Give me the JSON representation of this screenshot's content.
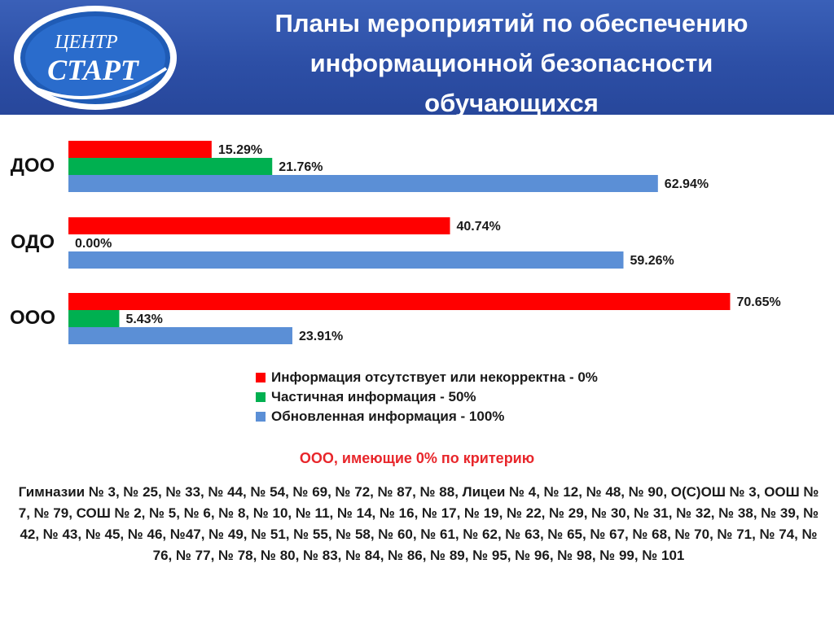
{
  "header": {
    "title": "Планы мероприятий по обеспечению\nинформационной безопасности\nобучающихся",
    "logo": {
      "line1": "ЦЕНТР",
      "line2": "СТАРТ"
    }
  },
  "chart_data": {
    "type": "bar",
    "orientation": "horizontal",
    "categories": [
      "ДОО",
      "ОДО",
      "ООО"
    ],
    "series": [
      {
        "name": "Информация отсутствует или некорректна - 0%",
        "color": "#ff0000",
        "values": [
          15.29,
          40.74,
          70.65
        ],
        "labels": [
          "15.29%",
          "40.74%",
          "70.65%"
        ]
      },
      {
        "name": "Частичная информация - 50%",
        "color": "#00b050",
        "values": [
          21.76,
          0.0,
          5.43
        ],
        "labels": [
          "21.76%",
          "0.00%",
          "5.43%"
        ]
      },
      {
        "name": "Обновленная информация - 100%",
        "color": "#5b8fd6",
        "values": [
          62.94,
          59.26,
          23.91
        ],
        "labels": [
          "62.94%",
          "59.26%",
          "23.91%"
        ]
      }
    ],
    "xlim": [
      0,
      100
    ],
    "grid": false,
    "legend_position": "bottom"
  },
  "subheading": "ООО, имеющие 0% по критерию",
  "schools_text": "Гимназии № 3, № 25, № 33, № 44, № 54, № 69, № 72, № 87, № 88, Лицеи № 4, № 12, № 48, № 90, О(С)ОШ № 3, ООШ № 7, № 79, СОШ № 2, № 5, № 6, № 8, № 10, № 11, № 14, № 16, № 17, № 19, № 22, № 29, № 30, № 31, № 32, № 38, № 39, № 42, № 43, № 45, № 46, №47, № 49,  № 51, № 55, № 58, № 60, № 61, № 62, № 63, № 65, № 67, № 68, № 70, № 71, № 74,  № 76, № 77, № 78, № 80, № 83, № 84, № 86, № 89, № 95, № 96, № 98, № 99, № 101"
}
